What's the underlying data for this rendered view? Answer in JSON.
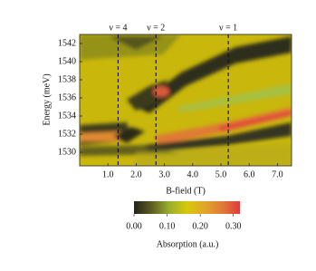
{
  "chart_data": {
    "type": "heatmap",
    "xlabel": "B-field (T)",
    "ylabel": "Energy (meV)",
    "xlim": [
      0,
      7.5
    ],
    "ylim": [
      1528.5,
      1543
    ],
    "xticks": [
      {
        "value": 1,
        "label": "1.0"
      },
      {
        "value": 2,
        "label": "2.0"
      },
      {
        "value": 3,
        "label": "3.0"
      },
      {
        "value": 4,
        "label": "4.0"
      },
      {
        "value": 5,
        "label": "5.0"
      },
      {
        "value": 6,
        "label": "6.0"
      },
      {
        "value": 7,
        "label": "7.0"
      }
    ],
    "yticks": [
      1530,
      1532,
      1534,
      1536,
      1538,
      1540,
      1542
    ],
    "annotations": [
      {
        "label": "ν = 4",
        "x": 1.36
      },
      {
        "label": "ν = 2",
        "x": 2.7
      },
      {
        "label": "ν = 1",
        "x": 5.26
      }
    ],
    "colorbar": {
      "label": "Absorption (a.u.)",
      "lim": [
        0,
        0.32
      ],
      "ticks": [
        {
          "value": 0,
          "label": "0.00"
        },
        {
          "value": 0.1,
          "label": "0.10"
        },
        {
          "value": 0.2,
          "label": "0.20"
        },
        {
          "value": 0.3,
          "label": "0.30"
        }
      ],
      "colormap": [
        "#23231a",
        "#5d5d22",
        "#9aae2c",
        "#d7c80a",
        "#e0a628",
        "#e07a3a",
        "#e03a3a"
      ]
    }
  }
}
